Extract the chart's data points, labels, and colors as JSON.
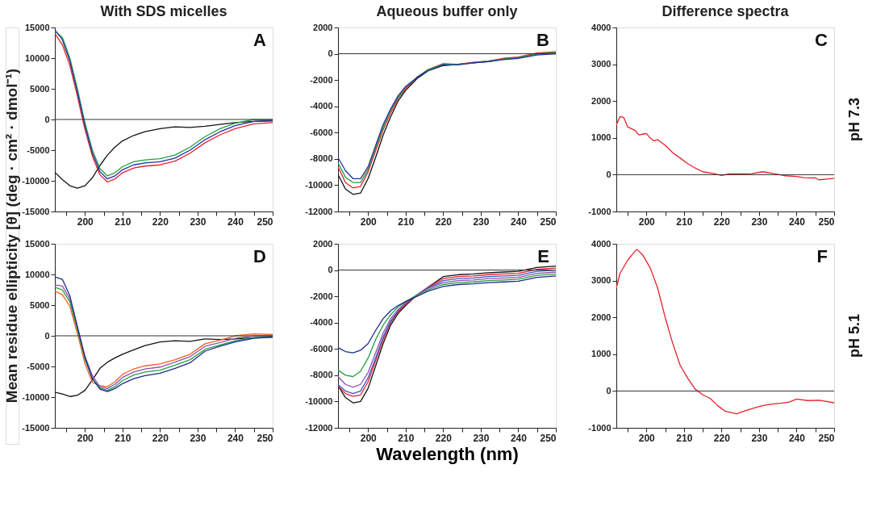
{
  "chart_data": [
    {
      "type": "line",
      "title": "With SDS micelles",
      "ylabel": "Mean residue ellipticity [θ] (deg · cm² · dmol⁻¹)",
      "annotations": [
        "A"
      ],
      "grid": false,
      "xlim": [
        192,
        250
      ],
      "xticks": [
        {
          "value": 195,
          "label": null
        },
        200,
        {
          "value": 205,
          "label": null
        },
        210,
        {
          "value": 215,
          "label": null
        },
        220,
        {
          "value": 225,
          "label": null
        },
        230,
        {
          "value": 235,
          "label": null
        },
        240,
        {
          "value": 245,
          "label": null
        },
        250
      ],
      "ylim": [
        -15000,
        15000
      ],
      "yticks": [
        -15000,
        -10000,
        -5000,
        0,
        5000,
        10000,
        15000
      ],
      "ref_lines": [
        {
          "axis": "y",
          "value": 0
        }
      ],
      "x": [
        192,
        194,
        196,
        198,
        200,
        202,
        204,
        206,
        208,
        210,
        213,
        216,
        220,
        224,
        228,
        232,
        236,
        240,
        245,
        250
      ],
      "series": [
        {
          "color": "#111111",
          "values": [
            -8600,
            -9800,
            -10800,
            -11200,
            -10800,
            -9500,
            -7500,
            -5800,
            -4500,
            -3500,
            -2600,
            -2000,
            -1500,
            -1200,
            -1300,
            -1100,
            -800,
            -500,
            -300,
            -200
          ]
        },
        {
          "color": "#e8202a",
          "values": [
            14000,
            12200,
            8800,
            3800,
            -1600,
            -6000,
            -9000,
            -10200,
            -9700,
            -8700,
            -7900,
            -7600,
            -7400,
            -6800,
            -5500,
            -3800,
            -2500,
            -1500,
            -700,
            -500
          ]
        },
        {
          "color": "#22a040",
          "values": [
            14400,
            13400,
            10000,
            5000,
            -500,
            -5000,
            -8000,
            -9200,
            -8700,
            -7700,
            -6900,
            -6600,
            -6400,
            -5800,
            -4500,
            -2800,
            -1500,
            -600,
            0,
            0
          ]
        },
        {
          "color": "#2030a0",
          "values": [
            14600,
            13000,
            9500,
            4500,
            -1000,
            -5500,
            -8500,
            -9700,
            -9200,
            -8200,
            -7400,
            -7100,
            -6900,
            -6300,
            -5000,
            -3300,
            -2000,
            -1000,
            -300,
            -200
          ]
        }
      ]
    },
    {
      "type": "line",
      "title": "Aqueous buffer only",
      "annotations": [
        "B"
      ],
      "grid": false,
      "xlim": [
        192,
        250
      ],
      "xticks": [
        {
          "value": 195,
          "label": null
        },
        200,
        {
          "value": 205,
          "label": null
        },
        210,
        {
          "value": 215,
          "label": null
        },
        220,
        {
          "value": 225,
          "label": null
        },
        230,
        {
          "value": 235,
          "label": null
        },
        240,
        {
          "value": 245,
          "label": null
        },
        250
      ],
      "ylim": [
        -12000,
        2000
      ],
      "yticks": [
        -12000,
        -10000,
        -8000,
        -6000,
        -4000,
        -2000,
        0,
        2000
      ],
      "ref_lines": [
        {
          "axis": "y",
          "value": 0
        }
      ],
      "x": [
        192,
        194,
        196,
        198,
        200,
        202,
        204,
        206,
        208,
        210,
        213,
        216,
        220,
        224,
        228,
        232,
        236,
        240,
        245,
        250
      ],
      "series": [
        {
          "color": "#111111",
          "values": [
            -9200,
            -10300,
            -10700,
            -10600,
            -9500,
            -7900,
            -6200,
            -4800,
            -3600,
            -2800,
            -1900,
            -1300,
            -900,
            -800,
            -700,
            -600,
            -400,
            -300,
            0,
            50
          ]
        },
        {
          "color": "#e8202a",
          "values": [
            -8600,
            -9800,
            -10200,
            -10100,
            -9000,
            -7400,
            -5800,
            -4500,
            -3400,
            -2700,
            -1800,
            -1200,
            -750,
            -800,
            -650,
            -550,
            -350,
            -250,
            50,
            150
          ]
        },
        {
          "color": "#22a040",
          "values": [
            -8300,
            -9400,
            -9800,
            -9800,
            -8800,
            -7200,
            -5600,
            -4300,
            -3300,
            -2600,
            -1800,
            -1200,
            -800,
            -800,
            -700,
            -550,
            -400,
            -300,
            0,
            100
          ]
        },
        {
          "color": "#2030a0",
          "values": [
            -7900,
            -8900,
            -9500,
            -9500,
            -8600,
            -7000,
            -5400,
            -4200,
            -3200,
            -2500,
            -1800,
            -1300,
            -850,
            -850,
            -700,
            -600,
            -450,
            -350,
            -100,
            0
          ]
        }
      ]
    },
    {
      "type": "line",
      "title": "Difference spectra",
      "y2label": "pH 7.3",
      "annotations": [
        "C"
      ],
      "grid": false,
      "xlim": [
        192,
        250
      ],
      "xticks": [
        {
          "value": 195,
          "label": null
        },
        200,
        {
          "value": 205,
          "label": null
        },
        210,
        {
          "value": 215,
          "label": null
        },
        220,
        {
          "value": 225,
          "label": null
        },
        230,
        {
          "value": 235,
          "label": null
        },
        240,
        {
          "value": 245,
          "label": null
        },
        250
      ],
      "ylim": [
        -1000,
        4000
      ],
      "yticks": [
        -1000,
        0,
        1000,
        2000,
        3000,
        4000
      ],
      "ref_lines": [
        {
          "axis": "y",
          "value": 0
        }
      ],
      "x": [
        192,
        193,
        194,
        195,
        197,
        198,
        199,
        200,
        201,
        202,
        203,
        205,
        207,
        209,
        211,
        213,
        215,
        218,
        220,
        222,
        226,
        228,
        231,
        234,
        237,
        240,
        242,
        245,
        246,
        248,
        250
      ],
      "series": [
        {
          "color": "#e8202a",
          "values": [
            1350,
            1580,
            1550,
            1300,
            1200,
            1080,
            1100,
            1120,
            1000,
            920,
            950,
            800,
            600,
            450,
            300,
            180,
            80,
            30,
            -20,
            20,
            20,
            30,
            80,
            30,
            -30,
            -50,
            -80,
            -90,
            -140,
            -120,
            -100
          ]
        }
      ]
    },
    {
      "type": "line",
      "annotations": [
        "D"
      ],
      "grid": false,
      "xlim": [
        192,
        250
      ],
      "xticks": [
        {
          "value": 195,
          "label": null
        },
        200,
        {
          "value": 205,
          "label": null
        },
        210,
        {
          "value": 215,
          "label": null
        },
        220,
        {
          "value": 225,
          "label": null
        },
        230,
        {
          "value": 235,
          "label": null
        },
        240,
        {
          "value": 245,
          "label": null
        },
        250
      ],
      "ylim": [
        -15000,
        15000
      ],
      "yticks": [
        -15000,
        -10000,
        -5000,
        0,
        5000,
        10000,
        15000
      ],
      "ref_lines": [
        {
          "axis": "y",
          "value": 0
        }
      ],
      "x": [
        192,
        194,
        196,
        198,
        200,
        202,
        204,
        206,
        208,
        210,
        213,
        216,
        220,
        224,
        228,
        232,
        236,
        240,
        245,
        250
      ],
      "series": [
        {
          "color": "#111111",
          "values": [
            -9200,
            -9500,
            -9900,
            -9700,
            -8900,
            -7200,
            -5300,
            -4300,
            -3600,
            -3000,
            -2300,
            -1600,
            -1000,
            -800,
            -900,
            -500,
            -600,
            -500,
            -300,
            -200
          ]
        },
        {
          "color": "#f06020",
          "values": [
            7300,
            6700,
            4800,
            400,
            -4500,
            -7600,
            -8100,
            -8300,
            -7500,
            -6300,
            -5400,
            -4900,
            -4600,
            -3900,
            -3000,
            -1300,
            -700,
            0,
            300,
            200
          ]
        },
        {
          "color": "#9050b0",
          "values": [
            8300,
            8100,
            6000,
            1500,
            -3300,
            -6500,
            -8300,
            -8600,
            -7900,
            -6800,
            -5900,
            -5400,
            -5100,
            -4300,
            -3400,
            -1700,
            -1100,
            -400,
            0,
            0
          ]
        },
        {
          "color": "#22a040",
          "values": [
            7900,
            7500,
            5500,
            1000,
            -3800,
            -7000,
            -8500,
            -8900,
            -8300,
            -7300,
            -6400,
            -5900,
            -5600,
            -4800,
            -3900,
            -2200,
            -1500,
            -800,
            -300,
            -100
          ]
        },
        {
          "color": "#1c2a8c",
          "values": [
            9600,
            9200,
            6500,
            1500,
            -3500,
            -7000,
            -8700,
            -9100,
            -8600,
            -7800,
            -7000,
            -6500,
            -6100,
            -5300,
            -4400,
            -2500,
            -1700,
            -1000,
            -400,
            -200
          ]
        }
      ]
    },
    {
      "type": "line",
      "xlabel": "Wavelength (nm)",
      "annotations": [
        "E"
      ],
      "grid": false,
      "xlim": [
        192,
        250
      ],
      "xticks": [
        {
          "value": 195,
          "label": null
        },
        200,
        {
          "value": 205,
          "label": null
        },
        210,
        {
          "value": 215,
          "label": null
        },
        220,
        {
          "value": 225,
          "label": null
        },
        230,
        {
          "value": 235,
          "label": null
        },
        240,
        {
          "value": 245,
          "label": null
        },
        250
      ],
      "ylim": [
        -12000,
        2000
      ],
      "yticks": [
        -12000,
        -10000,
        -8000,
        -6000,
        -4000,
        -2000,
        0,
        2000
      ],
      "ref_lines": [
        {
          "axis": "y",
          "value": 0
        }
      ],
      "x": [
        192,
        194,
        196,
        198,
        200,
        202,
        204,
        206,
        208,
        210,
        213,
        216,
        220,
        224,
        228,
        232,
        236,
        240,
        245,
        250
      ],
      "series": [
        {
          "color": "#111111",
          "values": [
            -8800,
            -9700,
            -10100,
            -10000,
            -9000,
            -7300,
            -5600,
            -4200,
            -3300,
            -2700,
            -1900,
            -1300,
            -500,
            -350,
            -300,
            -200,
            -150,
            -100,
            200,
            300
          ]
        },
        {
          "color": "#e8202a",
          "values": [
            -8800,
            -9400,
            -9600,
            -9500,
            -8500,
            -6900,
            -5300,
            -4000,
            -3200,
            -2600,
            -1900,
            -1300,
            -650,
            -500,
            -450,
            -350,
            -300,
            -250,
            50,
            150
          ]
        },
        {
          "color": "#3858c8",
          "values": [
            -8700,
            -9200,
            -9400,
            -9200,
            -8200,
            -6700,
            -5100,
            -3900,
            -3100,
            -2500,
            -1900,
            -1350,
            -800,
            -650,
            -600,
            -500,
            -450,
            -400,
            -100,
            0
          ]
        },
        {
          "color": "#9050b0",
          "values": [
            -8100,
            -8700,
            -8900,
            -8700,
            -7800,
            -6300,
            -4800,
            -3700,
            -3000,
            -2500,
            -1900,
            -1400,
            -950,
            -800,
            -750,
            -650,
            -600,
            -550,
            -250,
            -150
          ]
        },
        {
          "color": "#22a040",
          "values": [
            -7600,
            -8000,
            -8100,
            -7700,
            -6700,
            -5300,
            -4200,
            -3400,
            -2800,
            -2400,
            -1900,
            -1500,
            -1100,
            -950,
            -900,
            -800,
            -750,
            -700,
            -400,
            -300
          ]
        },
        {
          "color": "#1c2a8c",
          "values": [
            -5900,
            -6200,
            -6300,
            -6100,
            -5600,
            -4600,
            -3700,
            -3100,
            -2700,
            -2400,
            -2000,
            -1600,
            -1250,
            -1100,
            -1050,
            -950,
            -900,
            -850,
            -550,
            -450
          ]
        }
      ]
    },
    {
      "type": "line",
      "y2label": "pH 5.1",
      "annotations": [
        "F"
      ],
      "grid": false,
      "xlim": [
        192,
        250
      ],
      "xticks": [
        {
          "value": 195,
          "label": null
        },
        200,
        {
          "value": 205,
          "label": null
        },
        210,
        {
          "value": 215,
          "label": null
        },
        220,
        {
          "value": 225,
          "label": null
        },
        230,
        {
          "value": 235,
          "label": null
        },
        240,
        {
          "value": 245,
          "label": null
        },
        250
      ],
      "ylim": [
        -1000,
        4000
      ],
      "yticks": [
        -1000,
        0,
        1000,
        2000,
        3000,
        4000
      ],
      "ref_lines": [
        {
          "axis": "y",
          "value": 0
        }
      ],
      "x": [
        192,
        193,
        195,
        197,
        197.5,
        199,
        201,
        203,
        205,
        207,
        209,
        211,
        213,
        215,
        217,
        219,
        221,
        224,
        226,
        228,
        230,
        232,
        234,
        236,
        238,
        240,
        243,
        246,
        250
      ],
      "series": [
        {
          "color": "#e8202a",
          "values": [
            2800,
            3200,
            3550,
            3800,
            3850,
            3700,
            3350,
            2800,
            2000,
            1300,
            700,
            350,
            50,
            -100,
            -200,
            -400,
            -550,
            -620,
            -550,
            -480,
            -420,
            -380,
            -350,
            -330,
            -300,
            -220,
            -260,
            -250,
            -320
          ]
        }
      ]
    }
  ]
}
